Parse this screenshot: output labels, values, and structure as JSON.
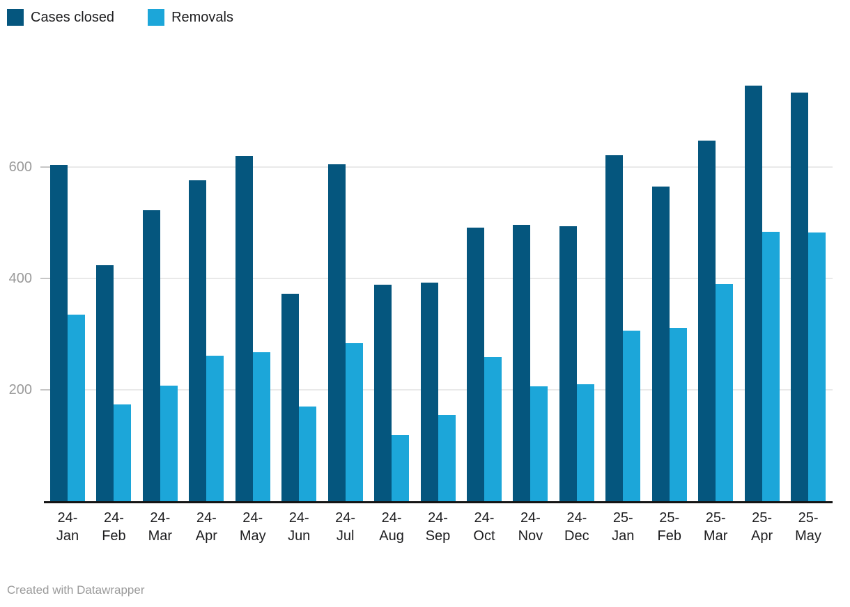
{
  "footer": {
    "credit": "Created with Datawrapper"
  },
  "chart_data": {
    "type": "bar",
    "title": "",
    "categories": [
      "24-Jan",
      "24-Feb",
      "24-Mar",
      "24-Apr",
      "24-May",
      "24-Jun",
      "24-Jul",
      "24-Aug",
      "24-Sep",
      "24-Oct",
      "24-Nov",
      "24-Dec",
      "25-Jan",
      "25-Feb",
      "25-Mar",
      "25-Apr",
      "25-May"
    ],
    "series": [
      {
        "name": "Cases closed",
        "color": "#05567e",
        "values": [
          604,
          424,
          523,
          576,
          620,
          372,
          605,
          389,
          392,
          491,
          496,
          494,
          621,
          565,
          648,
          746,
          734
        ]
      },
      {
        "name": "Removals",
        "color": "#1ca6d9",
        "values": [
          335,
          174,
          208,
          261,
          268,
          170,
          284,
          119,
          155,
          259,
          206,
          210,
          306,
          311,
          390,
          484,
          483
        ]
      }
    ],
    "ylabel": "",
    "xlabel": "",
    "yticks": [
      200,
      400,
      600
    ],
    "ylim": [
      0,
      760
    ],
    "grid": "horizontal",
    "legend_position": "top-left",
    "bar_layout": "grouped-touching",
    "gridline_color": "#e9e9e9",
    "axis_line_color": "#141414",
    "tick_label_color": "#9a9a9a"
  }
}
